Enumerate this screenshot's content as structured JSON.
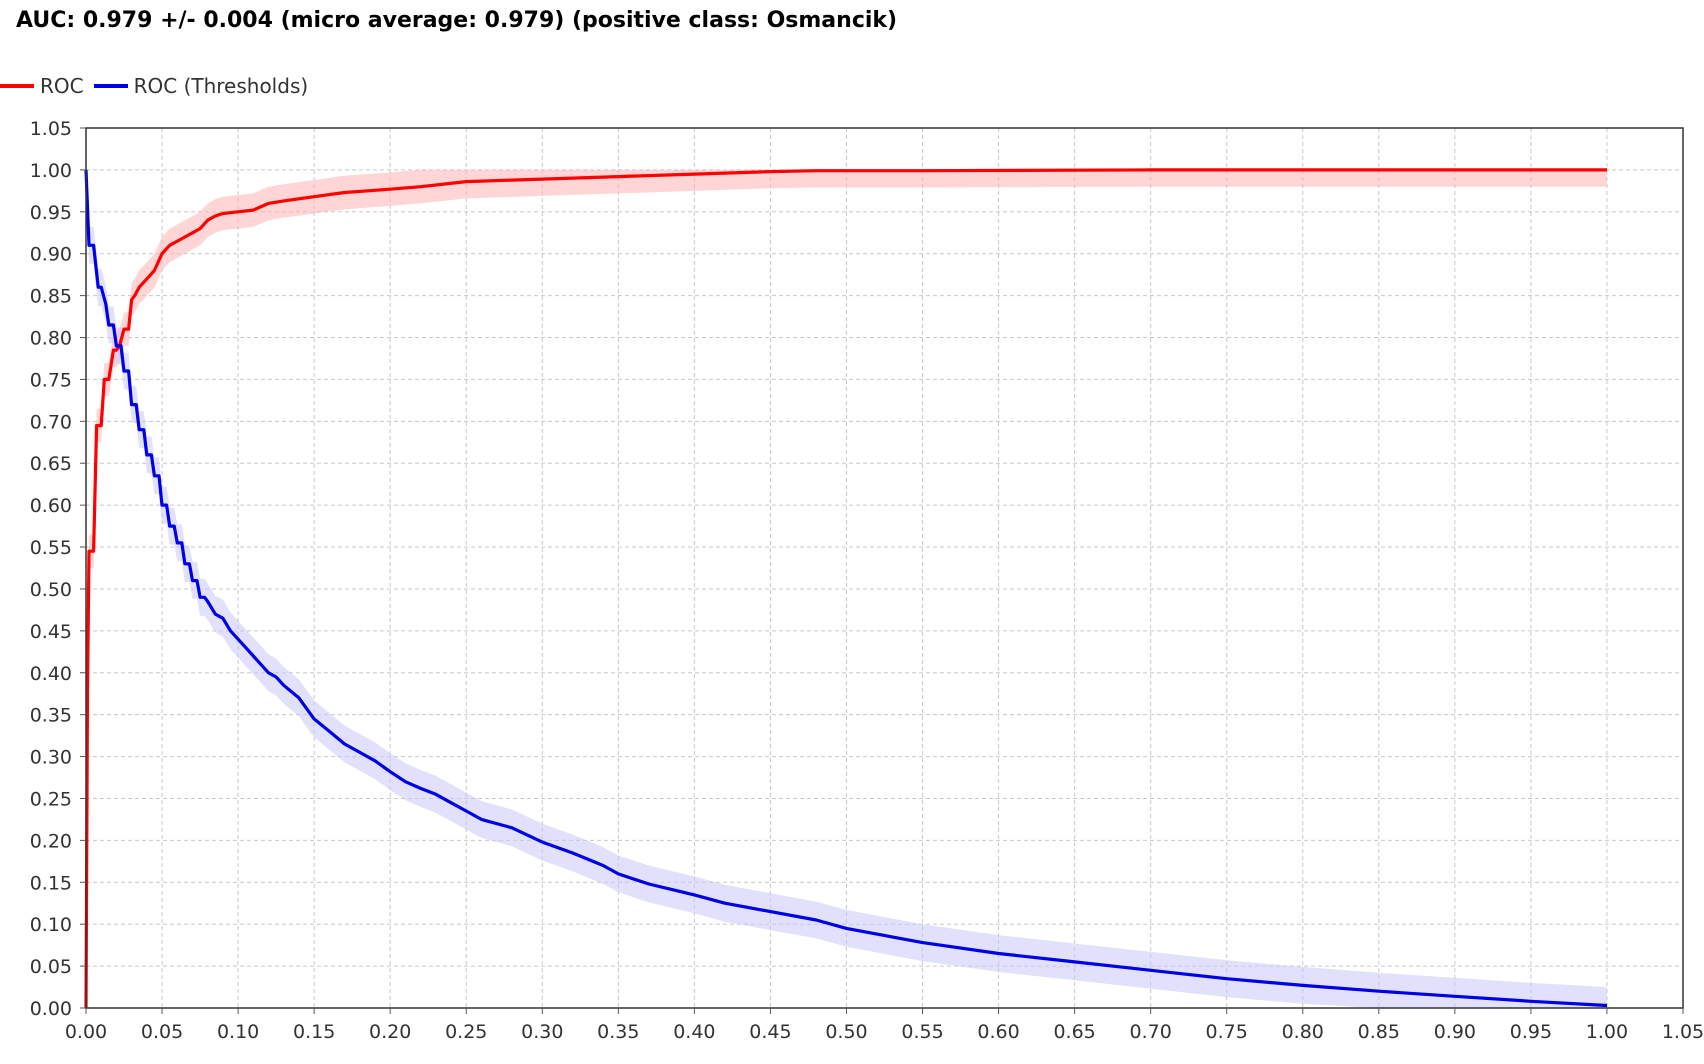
{
  "chart_data": {
    "type": "line",
    "title": "AUC: 0.979 +/- 0.004 (micro average: 0.979) (positive class: Osmancik)",
    "xlabel": "",
    "ylabel": "",
    "xlim": [
      0,
      1.05
    ],
    "ylim": [
      0,
      1.05
    ],
    "grid": true,
    "legend_position": "top-left",
    "x_ticks": [
      "0.00",
      "0.05",
      "0.10",
      "0.15",
      "0.20",
      "0.25",
      "0.30",
      "0.35",
      "0.40",
      "0.45",
      "0.50",
      "0.55",
      "0.60",
      "0.65",
      "0.70",
      "0.75",
      "0.80",
      "0.85",
      "0.90",
      "0.95",
      "1.00",
      "1.05"
    ],
    "y_ticks": [
      "0.00",
      "0.05",
      "0.10",
      "0.15",
      "0.20",
      "0.25",
      "0.30",
      "0.35",
      "0.40",
      "0.45",
      "0.50",
      "0.55",
      "0.60",
      "0.65",
      "0.70",
      "0.75",
      "0.80",
      "0.85",
      "0.90",
      "0.95",
      "1.00",
      "1.05"
    ],
    "series": [
      {
        "name": "ROC",
        "color": "#ff0000",
        "band_color": "#ffb3b3",
        "x": [
          0.0,
          0.001,
          0.002,
          0.005,
          0.007,
          0.01,
          0.012,
          0.015,
          0.018,
          0.02,
          0.022,
          0.025,
          0.028,
          0.03,
          0.032,
          0.035,
          0.04,
          0.045,
          0.05,
          0.055,
          0.06,
          0.065,
          0.07,
          0.075,
          0.08,
          0.085,
          0.09,
          0.1,
          0.11,
          0.12,
          0.13,
          0.15,
          0.17,
          0.2,
          0.22,
          0.25,
          0.3,
          0.35,
          0.4,
          0.45,
          0.48,
          0.55,
          0.7,
          0.85,
          1.0
        ],
        "y": [
          0.0,
          0.38,
          0.545,
          0.545,
          0.695,
          0.695,
          0.75,
          0.75,
          0.785,
          0.785,
          0.79,
          0.81,
          0.81,
          0.845,
          0.85,
          0.86,
          0.87,
          0.88,
          0.9,
          0.91,
          0.915,
          0.92,
          0.925,
          0.93,
          0.94,
          0.945,
          0.948,
          0.95,
          0.952,
          0.96,
          0.963,
          0.968,
          0.973,
          0.977,
          0.98,
          0.986,
          0.989,
          0.992,
          0.995,
          0.998,
          0.999,
          0.999,
          1.0,
          1.0,
          1.0
        ],
        "band": 0.02
      },
      {
        "name": "ROC (Thresholds)",
        "color": "#0000e6",
        "band_color": "#c8c8f8",
        "x": [
          0.0,
          0.002,
          0.005,
          0.008,
          0.01,
          0.013,
          0.015,
          0.018,
          0.02,
          0.023,
          0.025,
          0.028,
          0.03,
          0.033,
          0.035,
          0.038,
          0.04,
          0.043,
          0.045,
          0.048,
          0.05,
          0.053,
          0.055,
          0.058,
          0.06,
          0.063,
          0.065,
          0.068,
          0.07,
          0.073,
          0.075,
          0.078,
          0.08,
          0.085,
          0.09,
          0.095,
          0.1,
          0.105,
          0.11,
          0.115,
          0.12,
          0.125,
          0.13,
          0.14,
          0.15,
          0.16,
          0.17,
          0.18,
          0.19,
          0.2,
          0.21,
          0.22,
          0.23,
          0.24,
          0.25,
          0.26,
          0.28,
          0.3,
          0.32,
          0.34,
          0.35,
          0.37,
          0.4,
          0.42,
          0.45,
          0.48,
          0.5,
          0.55,
          0.6,
          0.65,
          0.7,
          0.75,
          0.8,
          0.85,
          0.9,
          0.95,
          1.0
        ],
        "y": [
          1.0,
          0.91,
          0.91,
          0.86,
          0.86,
          0.84,
          0.815,
          0.815,
          0.79,
          0.79,
          0.76,
          0.76,
          0.72,
          0.72,
          0.69,
          0.69,
          0.66,
          0.66,
          0.635,
          0.635,
          0.6,
          0.6,
          0.575,
          0.575,
          0.555,
          0.555,
          0.53,
          0.53,
          0.51,
          0.51,
          0.49,
          0.49,
          0.485,
          0.47,
          0.465,
          0.45,
          0.44,
          0.43,
          0.42,
          0.41,
          0.4,
          0.395,
          0.385,
          0.37,
          0.345,
          0.33,
          0.315,
          0.305,
          0.295,
          0.282,
          0.27,
          0.262,
          0.255,
          0.245,
          0.235,
          0.225,
          0.215,
          0.198,
          0.185,
          0.17,
          0.16,
          0.148,
          0.135,
          0.125,
          0.115,
          0.105,
          0.095,
          0.078,
          0.065,
          0.055,
          0.045,
          0.035,
          0.027,
          0.02,
          0.014,
          0.008,
          0.003
        ],
        "band": 0.022
      }
    ]
  }
}
